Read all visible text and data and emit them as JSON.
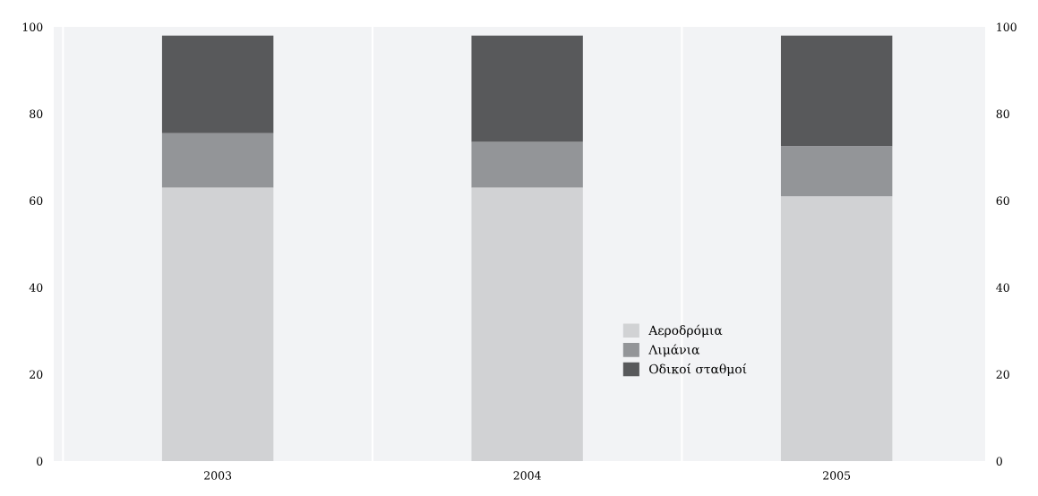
{
  "chart_data": {
    "type": "bar",
    "stacked": true,
    "categories": [
      "2003",
      "2004",
      "2005"
    ],
    "series": [
      {
        "name": "Αεροδρόμια",
        "color": "#d1d2d4",
        "values": [
          63,
          63,
          61
        ]
      },
      {
        "name": "Λιμάνια",
        "color": "#939598",
        "values": [
          12.5,
          10.5,
          11.5
        ]
      },
      {
        "name": "Οδικοί σταθμοί",
        "color": "#58595b",
        "values": [
          22.5,
          24.5,
          25.5
        ]
      }
    ],
    "ylim": [
      0,
      100
    ],
    "yticks": [
      0,
      20,
      40,
      60,
      80,
      100
    ],
    "y2lim": [
      0,
      100
    ],
    "y2ticks": [
      0,
      20,
      40,
      60,
      80,
      100
    ],
    "grid": "x",
    "legend": "bottom right"
  }
}
